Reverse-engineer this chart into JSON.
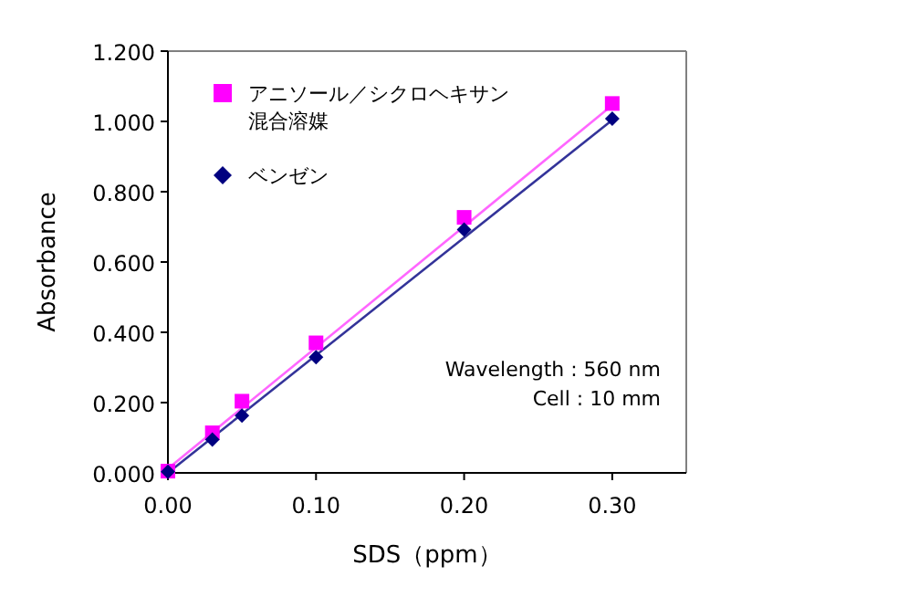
{
  "chart_data": {
    "type": "scatter",
    "xlabel": "SDS（ppm）",
    "ylabel": "Absorbance",
    "xlim": [
      0,
      0.35
    ],
    "ylim": [
      0,
      1.2
    ],
    "xticks": [
      {
        "value": 0,
        "label": "0.00"
      },
      {
        "value": 0.1,
        "label": "0.10"
      },
      {
        "value": 0.2,
        "label": "0.20"
      },
      {
        "value": 0.3,
        "label": "0.30"
      }
    ],
    "yticks": [
      {
        "value": 0,
        "label": "0.000"
      },
      {
        "value": 0.2,
        "label": "0.200"
      },
      {
        "value": 0.4,
        "label": "0.400"
      },
      {
        "value": 0.6,
        "label": "0.600"
      },
      {
        "value": 0.8,
        "label": "0.800"
      },
      {
        "value": 1.0,
        "label": "1.000"
      },
      {
        "value": 1.2,
        "label": "1.200"
      }
    ],
    "legend": "top left",
    "grid": false,
    "series": [
      {
        "type": "line",
        "color": "#ff66ff",
        "marker": "none",
        "x": [
          0,
          0.3
        ],
        "values": [
          0.012,
          1.046
        ]
      },
      {
        "type": "line",
        "color": "#333399",
        "marker": "none",
        "x": [
          0,
          0.3
        ],
        "values": [
          0,
          1.004
        ]
      },
      {
        "name": "アニソール／シクロヘキサン混合溶媒",
        "type": "scatter",
        "marker": "square",
        "color": "#ff00ff",
        "x": [
          0,
          0.03,
          0.05,
          0.1,
          0.2,
          0.3
        ],
        "values": [
          0.005,
          0.114,
          0.204,
          0.37,
          0.727,
          1.051
        ]
      },
      {
        "name": "ベンゼン",
        "type": "scatter",
        "marker": "diamond",
        "color": "#000080",
        "x": [
          0,
          0.03,
          0.05,
          0.1,
          0.2,
          0.3
        ],
        "values": [
          0.003,
          0.095,
          0.163,
          0.329,
          0.692,
          1.008
        ]
      }
    ],
    "annotations": [
      "Wavelength : 560 nm",
      "Cell : 10 mm"
    ]
  }
}
